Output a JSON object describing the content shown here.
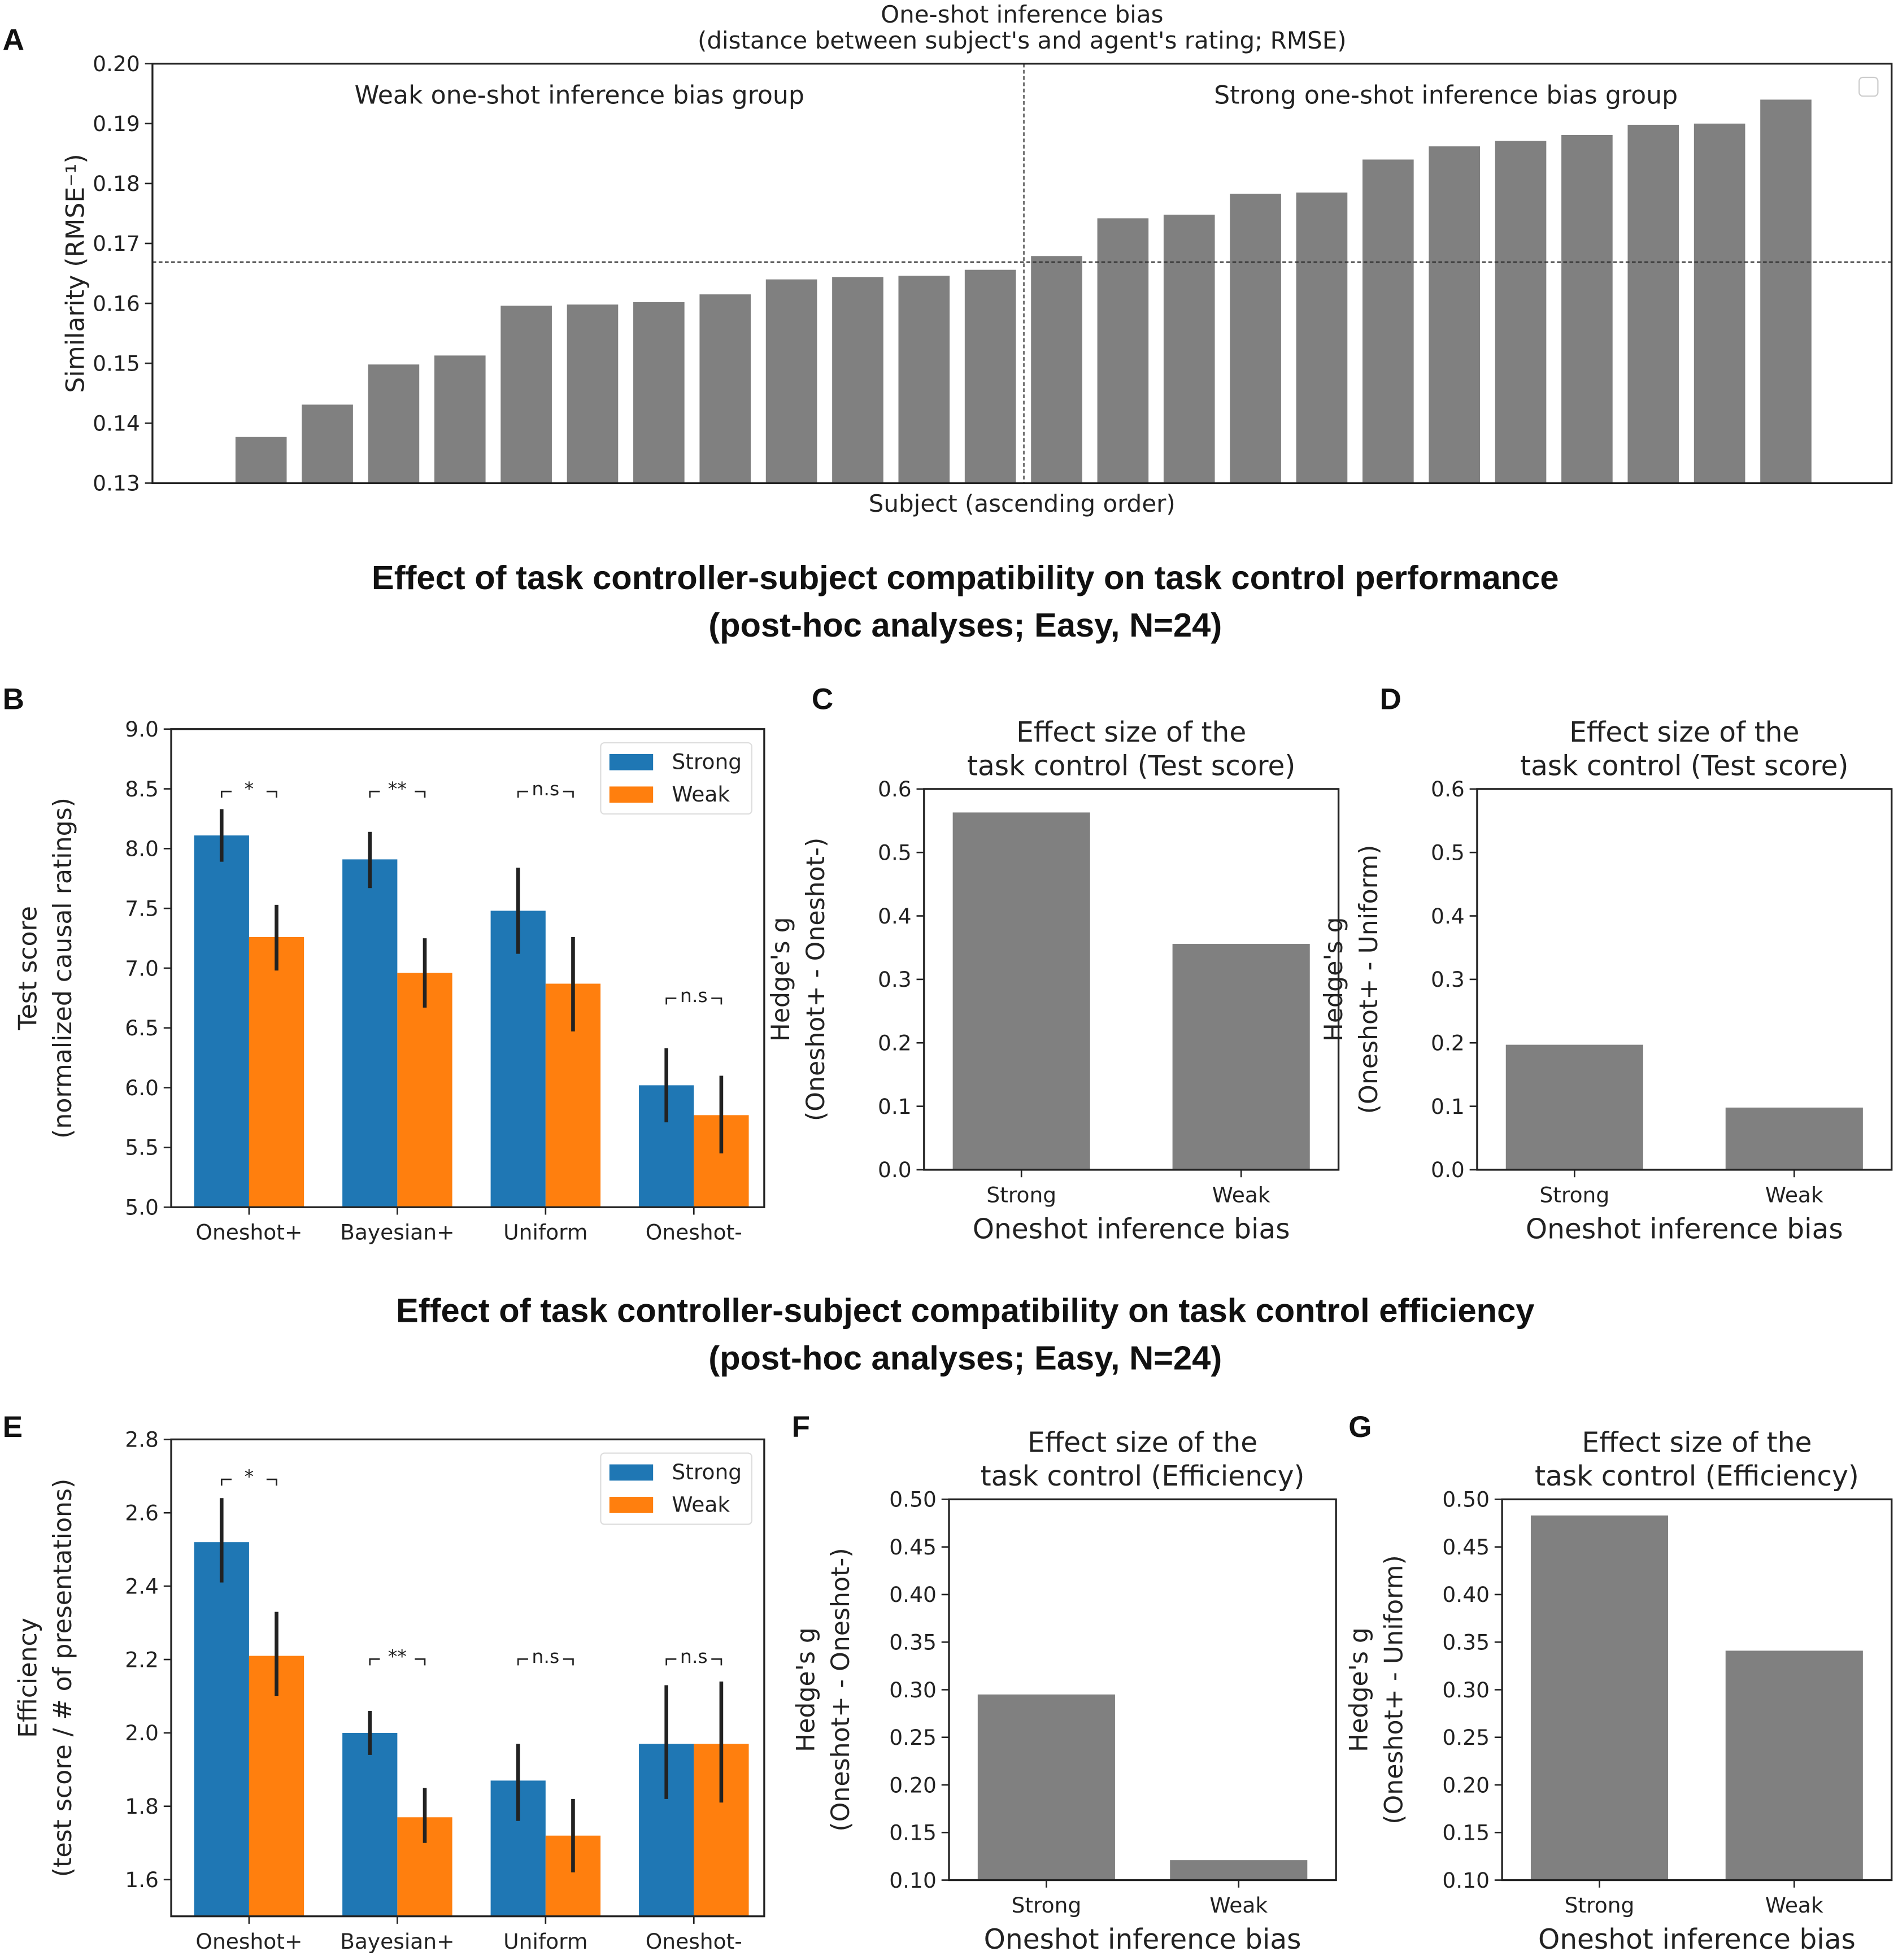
{
  "panel_letters": [
    "A",
    "B",
    "C",
    "D",
    "E",
    "F",
    "G"
  ],
  "headlines": {
    "perf_1": "Effect of task controller-subject compatibility on task control performance",
    "perf_2": "(post-hoc analyses; Easy, N=24)",
    "eff_1": "Effect of task controller-subject compatibility on task control efficiency",
    "eff_2": "(post-hoc analyses; Easy, N=24)"
  },
  "colors": {
    "gray": "#808080",
    "strong": "#1f77b4",
    "weak": "#ff7f0e"
  },
  "chart_data": [
    {
      "id": "A",
      "type": "bar",
      "title": [
        "One-shot inference bias",
        "(distance between subject's and agent's rating; RMSE)"
      ],
      "xlabel": "Subject (ascending order)",
      "ylabel": "Similarity (RMSE⁻¹)",
      "ylim": [
        0.13,
        0.2
      ],
      "yticks": [
        "0.13",
        "0.14",
        "0.15",
        "0.16",
        "0.17",
        "0.18",
        "0.19",
        "0.20"
      ],
      "values": [
        0.1377,
        0.1431,
        0.1498,
        0.1513,
        0.1596,
        0.1598,
        0.1602,
        0.1615,
        0.164,
        0.1644,
        0.1646,
        0.1656,
        0.1679,
        0.1742,
        0.1748,
        0.1783,
        0.1785,
        0.184,
        0.1862,
        0.1871,
        0.1881,
        0.1898,
        0.19,
        0.194
      ],
      "threshold": 0.1669,
      "annotations": [
        "Weak one-shot inference bias group",
        "Strong one-shot inference bias group"
      ],
      "legend": "top-right (empty)"
    },
    {
      "id": "B",
      "type": "bar",
      "ylabel": [
        "Test score",
        "(normalized causal ratings)"
      ],
      "ylim": [
        5.0,
        9.0
      ],
      "yticks": [
        "5.0",
        "5.5",
        "6.0",
        "6.5",
        "7.0",
        "7.5",
        "8.0",
        "8.5",
        "9.0"
      ],
      "categories": [
        "Oneshot+",
        "Bayesian+",
        "Uniform",
        "Oneshot-"
      ],
      "series": [
        {
          "name": "Strong",
          "values": [
            8.11,
            7.91,
            7.48,
            6.02
          ],
          "err_low": [
            7.89,
            7.67,
            7.12,
            5.71
          ],
          "err_high": [
            8.33,
            8.14,
            7.84,
            6.33
          ]
        },
        {
          "name": "Weak",
          "values": [
            7.26,
            6.96,
            6.87,
            5.77
          ],
          "err_low": [
            6.98,
            6.67,
            6.47,
            5.45
          ],
          "err_high": [
            7.53,
            7.25,
            7.26,
            6.1
          ]
        }
      ],
      "significance": [
        "*",
        "**",
        "n.s",
        "n.s"
      ],
      "legend": "top-right"
    },
    {
      "id": "C",
      "type": "bar",
      "title": [
        "Effect size of the",
        "task control (Test score)"
      ],
      "xlabel": "Oneshot inference bias",
      "ylabel": [
        "Hedge's g",
        "(Oneshot+ - Oneshot-)"
      ],
      "ylim": [
        0.0,
        0.6
      ],
      "yticks": [
        "0.0",
        "0.1",
        "0.2",
        "0.3",
        "0.4",
        "0.5",
        "0.6"
      ],
      "categories": [
        "Strong",
        "Weak"
      ],
      "values": [
        0.563,
        0.356
      ]
    },
    {
      "id": "D",
      "type": "bar",
      "title": [
        "Effect size of the",
        "task control (Test score)"
      ],
      "xlabel": "Oneshot inference bias",
      "ylabel": [
        "Hedge's g",
        "(Oneshot+ - Uniform)"
      ],
      "ylim": [
        0.0,
        0.6
      ],
      "yticks": [
        "0.0",
        "0.1",
        "0.2",
        "0.3",
        "0.4",
        "0.5",
        "0.6"
      ],
      "categories": [
        "Strong",
        "Weak"
      ],
      "values": [
        0.197,
        0.098
      ]
    },
    {
      "id": "E",
      "type": "bar",
      "ylabel": [
        "Efficiency",
        "(test score / # of presentations)"
      ],
      "ylim": [
        1.5,
        2.8
      ],
      "yticks": [
        "1.6",
        "1.8",
        "2.0",
        "2.2",
        "2.4",
        "2.6",
        "2.8"
      ],
      "categories": [
        "Oneshot+",
        "Bayesian+",
        "Uniform",
        "Oneshot-"
      ],
      "series": [
        {
          "name": "Strong",
          "values": [
            2.52,
            2.0,
            1.87,
            1.97
          ],
          "err_low": [
            2.41,
            1.94,
            1.76,
            1.82
          ],
          "err_high": [
            2.64,
            2.06,
            1.97,
            2.13
          ]
        },
        {
          "name": "Weak",
          "values": [
            2.21,
            1.77,
            1.72,
            1.97
          ],
          "err_low": [
            2.1,
            1.7,
            1.62,
            1.81
          ],
          "err_high": [
            2.33,
            1.85,
            1.82,
            2.14
          ]
        }
      ],
      "significance": [
        "*",
        "**",
        "n.s",
        "n.s"
      ],
      "legend": "top-right"
    },
    {
      "id": "F",
      "type": "bar",
      "title": [
        "Effect size of the",
        "task control (Efficiency)"
      ],
      "xlabel": "Oneshot inference bias",
      "ylabel": [
        "Hedge's g",
        "(Oneshot+ - Oneshot-)"
      ],
      "ylim": [
        0.1,
        0.5
      ],
      "yticks": [
        "0.10",
        "0.15",
        "0.20",
        "0.25",
        "0.30",
        "0.35",
        "0.40",
        "0.45",
        "0.50"
      ],
      "categories": [
        "Strong",
        "Weak"
      ],
      "values": [
        0.295,
        0.121
      ]
    },
    {
      "id": "G",
      "type": "bar",
      "title": [
        "Effect size of the",
        "task control (Efficiency)"
      ],
      "xlabel": "Oneshot inference bias",
      "ylabel": [
        "Hedge's g",
        "(Oneshot+ - Uniform)"
      ],
      "ylim": [
        0.1,
        0.5
      ],
      "yticks": [
        "0.10",
        "0.15",
        "0.20",
        "0.25",
        "0.30",
        "0.35",
        "0.40",
        "0.45",
        "0.50"
      ],
      "categories": [
        "Strong",
        "Weak"
      ],
      "values": [
        0.483,
        0.341
      ]
    }
  ]
}
